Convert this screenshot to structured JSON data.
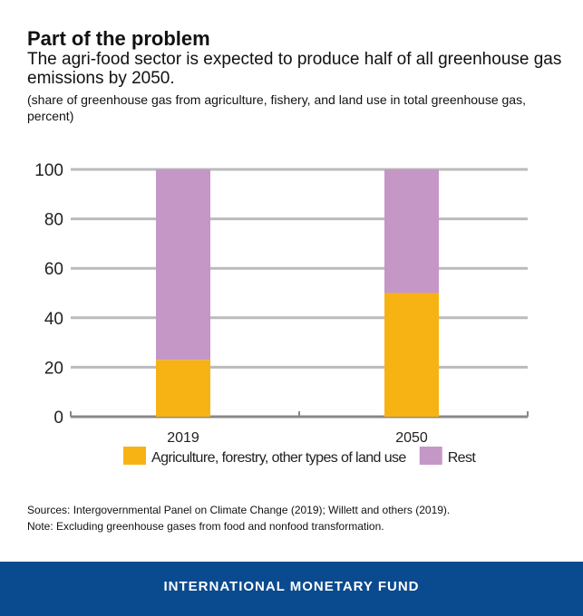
{
  "header": {
    "title": "Part of the problem",
    "subtitle": "The agri-food sector is expected to produce half of all greenhouse gas emissions by 2050.",
    "unit": "(share of greenhouse gas from agriculture, fishery, and land use in total greenhouse gas, percent)"
  },
  "chart_data": {
    "type": "bar",
    "stacked": true,
    "categories": [
      "2019",
      "2050"
    ],
    "series": [
      {
        "name": "Agriculture, forestry, other types of land use",
        "values": [
          23,
          50
        ],
        "color": "#f7b314"
      },
      {
        "name": "Rest",
        "values": [
          77,
          50
        ],
        "color": "#c597c6"
      }
    ],
    "ylim": [
      0,
      100
    ],
    "yticks": [
      "0",
      "20",
      "40",
      "60",
      "80",
      "100"
    ],
    "grid": true,
    "legend": "bottom"
  },
  "notes": {
    "sources": "Sources: Intergovernmental Panel on Climate Change (2019); Willett and others (2019).",
    "note": "Note: Excluding greenhouse gases from food and nonfood transformation."
  },
  "footer": {
    "label": "INTERNATIONAL MONETARY FUND"
  }
}
